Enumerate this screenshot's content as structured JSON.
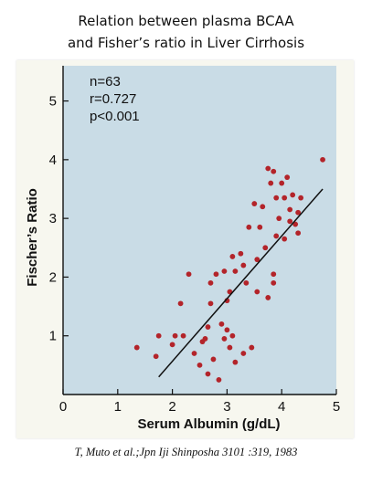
{
  "title_lines": [
    "Relation between plasma BCAA",
    "and Fisher’s ratio in Liver Cirrhosis"
  ],
  "citation": "T, Muto et al.;Jpn Iji Shinposha 3101 :319,  1983",
  "colors": {
    "plot_bg": "#c9dce6",
    "panel_bg": "#f7f7ef",
    "point": "#b3242a",
    "axis": "#111111"
  },
  "chart_data": {
    "type": "scatter",
    "xlabel": "Serum Albumin (g/dL)",
    "ylabel": "Fischer’s Ratio",
    "xlim": [
      0,
      5
    ],
    "ylim": [
      0,
      5.6
    ],
    "xticks": [
      "0",
      "1",
      "2",
      "3",
      "4",
      "5"
    ],
    "yticks": [
      "1",
      "2",
      "3",
      "4",
      "5"
    ],
    "stats": [
      "n=63",
      "r=0.727",
      "p<0.001"
    ],
    "grid": false,
    "regression_line": [
      [
        1.75,
        0.3
      ],
      [
        4.75,
        3.5
      ]
    ],
    "points": [
      [
        1.35,
        0.8
      ],
      [
        1.7,
        0.65
      ],
      [
        1.75,
        1.0
      ],
      [
        2.0,
        0.85
      ],
      [
        2.05,
        1.0
      ],
      [
        2.2,
        1.0
      ],
      [
        2.15,
        1.55
      ],
      [
        2.3,
        2.05
      ],
      [
        2.4,
        0.7
      ],
      [
        2.5,
        0.5
      ],
      [
        2.55,
        0.9
      ],
      [
        2.6,
        0.95
      ],
      [
        2.65,
        0.35
      ],
      [
        2.65,
        1.15
      ],
      [
        2.7,
        1.55
      ],
      [
        2.7,
        1.9
      ],
      [
        2.75,
        0.6
      ],
      [
        2.8,
        2.05
      ],
      [
        2.85,
        0.25
      ],
      [
        2.9,
        1.2
      ],
      [
        2.95,
        2.1
      ],
      [
        2.95,
        0.95
      ],
      [
        3.0,
        1.6
      ],
      [
        3.0,
        1.1
      ],
      [
        3.05,
        1.75
      ],
      [
        3.05,
        0.8
      ],
      [
        3.1,
        2.35
      ],
      [
        3.1,
        1.0
      ],
      [
        3.15,
        2.1
      ],
      [
        3.15,
        0.55
      ],
      [
        3.25,
        2.4
      ],
      [
        3.3,
        2.2
      ],
      [
        3.3,
        0.7
      ],
      [
        3.35,
        1.9
      ],
      [
        3.4,
        2.85
      ],
      [
        3.45,
        0.8
      ],
      [
        3.5,
        3.25
      ],
      [
        3.55,
        2.3
      ],
      [
        3.55,
        1.75
      ],
      [
        3.6,
        2.85
      ],
      [
        3.65,
        3.2
      ],
      [
        3.7,
        2.5
      ],
      [
        3.75,
        3.85
      ],
      [
        3.75,
        1.65
      ],
      [
        3.8,
        3.6
      ],
      [
        3.85,
        2.05
      ],
      [
        3.85,
        1.9
      ],
      [
        3.9,
        2.7
      ],
      [
        3.9,
        3.35
      ],
      [
        3.95,
        3.0
      ],
      [
        4.0,
        3.6
      ],
      [
        4.05,
        2.65
      ],
      [
        4.05,
        3.35
      ],
      [
        4.1,
        3.7
      ],
      [
        4.15,
        3.15
      ],
      [
        4.15,
        2.95
      ],
      [
        4.2,
        3.4
      ],
      [
        4.25,
        2.9
      ],
      [
        4.3,
        2.75
      ],
      [
        4.3,
        3.1
      ],
      [
        4.35,
        3.35
      ],
      [
        4.75,
        4.0
      ],
      [
        3.85,
        3.8
      ]
    ]
  }
}
